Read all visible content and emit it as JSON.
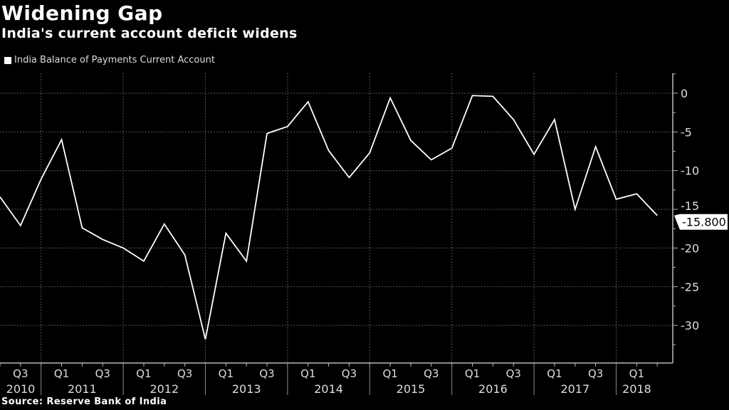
{
  "header": {
    "title": "Widening Gap",
    "subtitle": "India's current account deficit widens"
  },
  "footer": {
    "source": "Source: Reserve Bank of India"
  },
  "colors": {
    "background": "#000000",
    "line": "#ffffff",
    "grid": "#555555",
    "axis": "#bbbbbb"
  },
  "chart_data": {
    "type": "line",
    "title": "Widening Gap",
    "subtitle": "India's current account deficit widens",
    "legend": {
      "placement": "top-left",
      "entries": [
        "India Balance of Payments Current Account"
      ]
    },
    "grid": true,
    "y_axis": {
      "side": "right",
      "ylim": [
        -35,
        2.5
      ],
      "ticks": [
        0,
        -5,
        -10,
        -15,
        -20,
        -25,
        -30
      ],
      "tick_labels": [
        "0",
        "-5",
        "-10",
        "-15",
        "-20",
        "-25",
        "-30"
      ]
    },
    "x_axis": {
      "quarter_labels": [
        "Q3",
        "Q1",
        "Q3",
        "Q1",
        "Q3",
        "Q1",
        "Q3",
        "Q1",
        "Q3",
        "Q1",
        "Q3",
        "Q1",
        "Q3",
        "Q1",
        "Q3",
        "Q1"
      ],
      "year_labels": [
        "2010",
        "2011",
        "2012",
        "2013",
        "2014",
        "2015",
        "2016",
        "2017",
        "2018"
      ]
    },
    "last_value_label": "-15.800",
    "series": [
      {
        "name": "India Balance of Payments Current Account",
        "x": [
          "2010 Q2",
          "2010 Q3",
          "2010 Q4",
          "2011 Q1",
          "2011 Q2",
          "2011 Q3",
          "2011 Q4",
          "2012 Q1",
          "2012 Q2",
          "2012 Q3",
          "2012 Q4",
          "2013 Q1",
          "2013 Q2",
          "2013 Q3",
          "2013 Q4",
          "2014 Q1",
          "2014 Q2",
          "2014 Q3",
          "2014 Q4",
          "2015 Q1",
          "2015 Q2",
          "2015 Q3",
          "2015 Q4",
          "2016 Q1",
          "2016 Q2",
          "2016 Q3",
          "2016 Q4",
          "2017 Q1",
          "2017 Q2",
          "2017 Q3",
          "2017 Q4",
          "2018 Q1",
          "2018 Q2"
        ],
        "values": [
          -13.4,
          -17.1,
          -11.1,
          -6.0,
          -17.4,
          -18.9,
          -20.0,
          -21.7,
          -16.9,
          -20.9,
          -31.8,
          -18.1,
          -21.7,
          -5.2,
          -4.3,
          -1.1,
          -7.4,
          -10.9,
          -7.7,
          -0.6,
          -6.1,
          -8.6,
          -7.1,
          -0.3,
          -0.4,
          -3.4,
          -7.9,
          -3.4,
          -15.0,
          -6.9,
          -13.7,
          -13.0,
          -15.8
        ]
      }
    ]
  }
}
